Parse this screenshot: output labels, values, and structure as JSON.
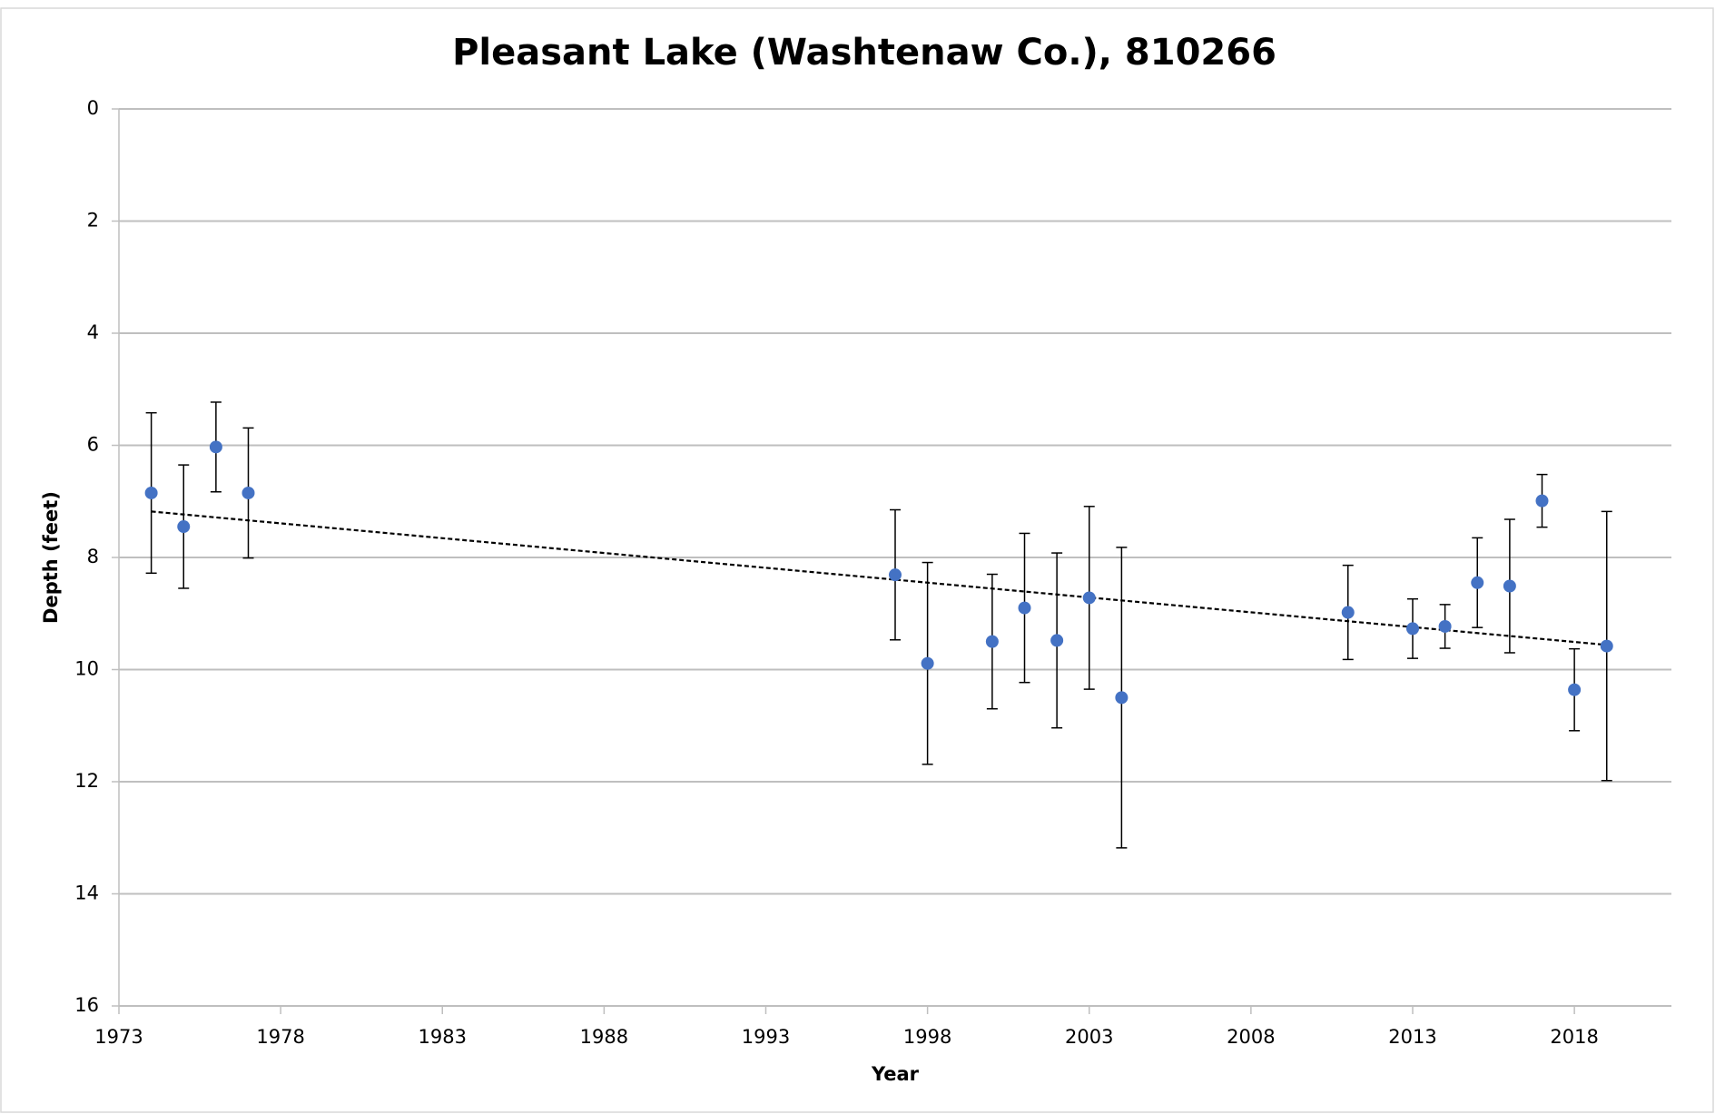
{
  "chart_data": {
    "type": "scatter",
    "title": "Pleasant Lake (Washtenaw Co.), 810266",
    "xlabel": "Year",
    "ylabel": "Depth (feet)",
    "x": [
      1974,
      1975,
      1976,
      1977,
      1997,
      1998,
      2000,
      2001,
      2002,
      2003,
      2004,
      2011,
      2013,
      2014,
      2015,
      2016,
      2017,
      2018,
      2019
    ],
    "series": [
      {
        "color": "#4472c4",
        "values": [
          6.85,
          7.45,
          6.03,
          6.85,
          8.31,
          9.89,
          9.5,
          8.9,
          9.48,
          8.72,
          10.5,
          8.98,
          9.27,
          9.23,
          8.45,
          8.51,
          6.99,
          10.36,
          9.58
        ],
        "errors": [
          1.43,
          1.1,
          0.8,
          1.16,
          1.16,
          1.8,
          1.2,
          1.33,
          1.56,
          1.63,
          2.68,
          0.84,
          0.53,
          0.39,
          0.8,
          1.19,
          0.47,
          0.73,
          2.4
        ]
      }
    ],
    "trendline": {
      "x": [
        1974,
        2019
      ],
      "values": [
        7.18,
        9.56
      ],
      "color": "#000000"
    },
    "xlim": [
      1973,
      2021
    ],
    "xticks": [
      1973,
      1978,
      1983,
      1988,
      1993,
      1998,
      2003,
      2008,
      2013,
      2018
    ],
    "ylim": [
      0,
      16
    ],
    "yticks": [
      0,
      2,
      4,
      6,
      8,
      10,
      12,
      14,
      16
    ],
    "y_inverted": true,
    "grid": true
  }
}
